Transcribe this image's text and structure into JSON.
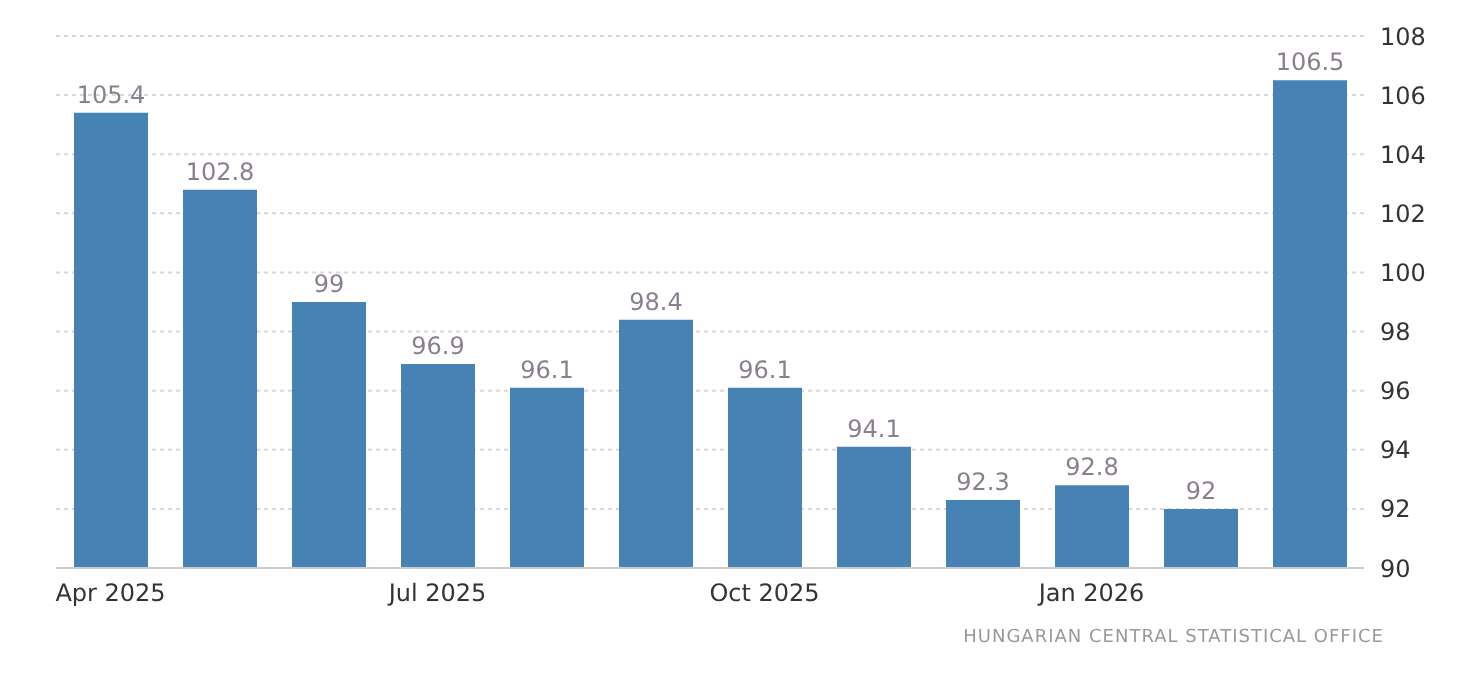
{
  "chart_data": {
    "type": "bar",
    "categories": [
      "Apr 2025",
      null,
      null,
      "Jul 2025",
      null,
      null,
      "Oct 2025",
      null,
      null,
      "Jan 2026",
      null,
      null
    ],
    "values": [
      105.4,
      102.8,
      99,
      96.9,
      96.1,
      98.4,
      96.1,
      94.1,
      92.3,
      92.8,
      92,
      106.5
    ],
    "color": "#4682b4",
    "ylim": [
      90,
      108
    ],
    "yticks": [
      90,
      92,
      94,
      96,
      98,
      100,
      102,
      104,
      106,
      108
    ],
    "grid": "y",
    "data_labels": true,
    "annotations": [
      "HUNGARIAN CENTRAL STATISTICAL OFFICE"
    ]
  }
}
